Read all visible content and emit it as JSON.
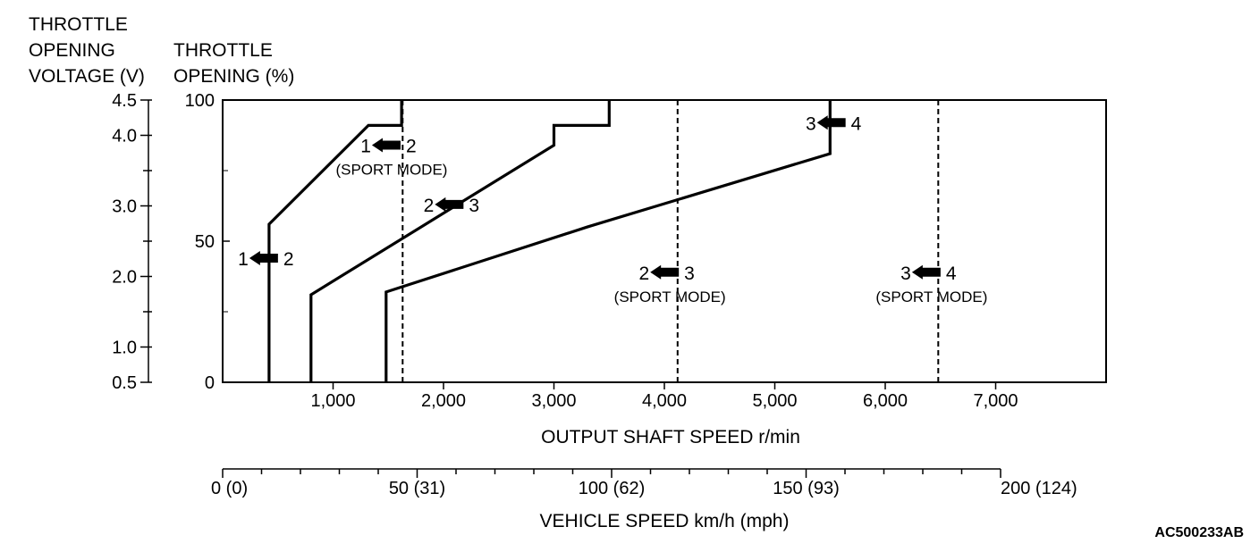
{
  "chart_data": {
    "type": "line",
    "figure_code": "AC500233AB",
    "axes": {
      "x": {
        "label": "OUTPUT SHAFT SPEED r/min",
        "lim": [
          0,
          8000
        ],
        "ticks": [
          1000,
          2000,
          3000,
          4000,
          5000,
          6000,
          7000
        ],
        "tick_labels": [
          "1,000",
          "2,000",
          "3,000",
          "4,000",
          "5,000",
          "6,000",
          "7,000"
        ]
      },
      "y_right": {
        "label_lines": [
          "THROTTLE",
          "OPENING (%)"
        ],
        "lim": [
          0,
          100
        ],
        "ticks": [
          0,
          50,
          100
        ],
        "tick_labels": [
          "0",
          "50",
          "100"
        ]
      },
      "y_left": {
        "label_lines": [
          "THROTTLE",
          "OPENING",
          "VOLTAGE (V)"
        ],
        "lim": [
          0.5,
          4.5
        ],
        "ticks": [
          0.5,
          1.0,
          2.0,
          3.0,
          4.0,
          4.5
        ],
        "tick_labels": [
          "0.5",
          "1.0",
          "2.0",
          "3.0",
          "4.0",
          "4.5"
        ]
      },
      "x_secondary": {
        "label": "VEHICLE SPEED km/h (mph)",
        "lim": [
          0,
          200
        ],
        "ticks": [
          0,
          50,
          100,
          150,
          200
        ],
        "tick_labels": [
          "0 (0)",
          "50 (31)",
          "100 (62)",
          "150 (93)",
          "200 (124)"
        ]
      }
    },
    "series": [
      {
        "x": [
          420,
          420,
          1320,
          1620,
          1620
        ],
        "y": [
          0,
          56,
          91,
          91,
          100
        ]
      },
      {
        "x": [
          800,
          800,
          3000,
          3000,
          3500,
          3500
        ],
        "y": [
          0,
          31,
          84,
          91,
          91,
          100
        ]
      },
      {
        "x": [
          1480,
          1480,
          3300,
          5500,
          5500
        ],
        "y": [
          0,
          32,
          55,
          81,
          100
        ]
      },
      {
        "x": [
          1630,
          1630
        ],
        "y": [
          0,
          100
        ],
        "style": "dashed"
      },
      {
        "x": [
          4120,
          4120
        ],
        "y": [
          0,
          100
        ],
        "style": "dashed"
      },
      {
        "x": [
          6480,
          6480
        ],
        "y": [
          0,
          100
        ],
        "style": "dashed"
      }
    ],
    "annotations": [
      {
        "left": "1",
        "right": "2",
        "x": 420,
        "y": 44
      },
      {
        "left": "1",
        "right": "2",
        "x": 1530,
        "y": 84,
        "sub": "(SPORT MODE)"
      },
      {
        "left": "2",
        "right": "3",
        "x": 2100,
        "y": 63
      },
      {
        "left": "2",
        "right": "3",
        "x": 4050,
        "y": 39,
        "sub": "(SPORT MODE)"
      },
      {
        "left": "3",
        "right": "4",
        "x": 5560,
        "y": 92
      },
      {
        "left": "3",
        "right": "4",
        "x": 6420,
        "y": 39,
        "sub": "(SPORT MODE)"
      }
    ]
  }
}
